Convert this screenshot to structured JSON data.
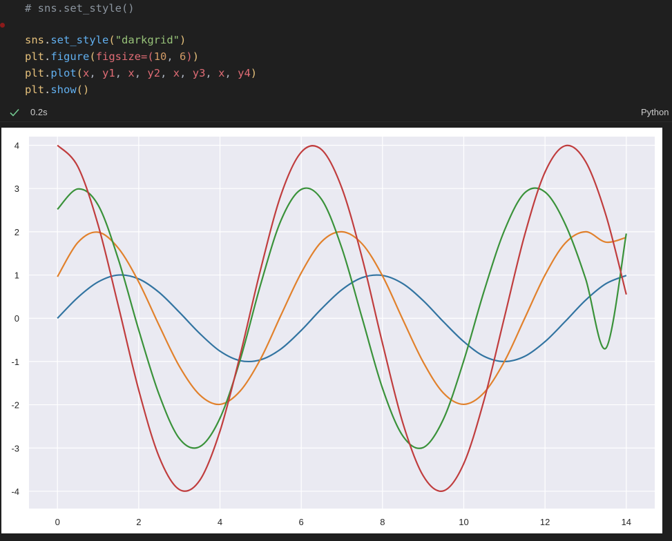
{
  "code": {
    "comment_line": "# sns.set_style()",
    "lines": [
      [
        {
          "t": "sns",
          "c": "var"
        },
        {
          "t": ".",
          "c": "dot"
        },
        {
          "t": "set_style",
          "c": "fn"
        },
        {
          "t": "(",
          "c": "paren"
        },
        {
          "t": "\"darkgrid\"",
          "c": "str"
        },
        {
          "t": ")",
          "c": "paren"
        }
      ],
      [
        {
          "t": "plt",
          "c": "var"
        },
        {
          "t": ".",
          "c": "dot"
        },
        {
          "t": "figure",
          "c": "fn"
        },
        {
          "t": "(",
          "c": "paren"
        },
        {
          "t": "figsize",
          "c": "kw"
        },
        {
          "t": "=",
          "c": "kw"
        },
        {
          "t": "(",
          "c": "kw"
        },
        {
          "t": "10",
          "c": "num"
        },
        {
          "t": ", ",
          "c": "punc"
        },
        {
          "t": "6",
          "c": "num"
        },
        {
          "t": ")",
          "c": "kw"
        },
        {
          "t": ")",
          "c": "paren"
        }
      ],
      [
        {
          "t": "plt",
          "c": "var"
        },
        {
          "t": ".",
          "c": "dot"
        },
        {
          "t": "plot",
          "c": "fn"
        },
        {
          "t": "(",
          "c": "paren"
        },
        {
          "t": "x",
          "c": "kw"
        },
        {
          "t": ", ",
          "c": "punc"
        },
        {
          "t": "y1",
          "c": "kw"
        },
        {
          "t": ", ",
          "c": "punc"
        },
        {
          "t": "x",
          "c": "kw"
        },
        {
          "t": ", ",
          "c": "punc"
        },
        {
          "t": "y2",
          "c": "kw"
        },
        {
          "t": ", ",
          "c": "punc"
        },
        {
          "t": "x",
          "c": "kw"
        },
        {
          "t": ", ",
          "c": "punc"
        },
        {
          "t": "y3",
          "c": "kw"
        },
        {
          "t": ", ",
          "c": "punc"
        },
        {
          "t": "x",
          "c": "kw"
        },
        {
          "t": ", ",
          "c": "punc"
        },
        {
          "t": "y4",
          "c": "kw"
        },
        {
          "t": ")",
          "c": "paren"
        }
      ],
      [
        {
          "t": "plt",
          "c": "var"
        },
        {
          "t": ".",
          "c": "dot"
        },
        {
          "t": "show",
          "c": "fn"
        },
        {
          "t": "()",
          "c": "paren"
        }
      ]
    ]
  },
  "status": {
    "exec_time": "0.2s",
    "kernel": "Python"
  },
  "colors": {
    "series": [
      "#3274a1",
      "#e1812c",
      "#3a923a",
      "#c03d3e"
    ],
    "plot_bg": "#eaeaf2",
    "grid": "#ffffff",
    "check": "#73c991"
  },
  "chart_data": {
    "type": "line",
    "style": "darkgrid",
    "xlim": [
      -0.7,
      14.7
    ],
    "ylim": [
      -4.4,
      4.2
    ],
    "xticks": [
      0,
      2,
      4,
      6,
      8,
      10,
      12,
      14
    ],
    "yticks": [
      4,
      3,
      2,
      1,
      0,
      -1,
      -2,
      -3,
      -4
    ],
    "grid": true,
    "series": [
      {
        "x": [
          0,
          0.5,
          1,
          1.5,
          2,
          2.5,
          3,
          3.5,
          4,
          4.5,
          5,
          5.5,
          6,
          6.5,
          7,
          7.5,
          8,
          8.5,
          9,
          9.5,
          10,
          10.5,
          11,
          11.5,
          12,
          12.5,
          13,
          13.5,
          14
        ],
        "y": [
          0,
          0.48,
          0.84,
          1.0,
          0.91,
          0.6,
          0.14,
          -0.35,
          -0.76,
          -0.98,
          -0.96,
          -0.71,
          -0.28,
          0.22,
          0.66,
          0.94,
          0.99,
          0.8,
          0.41,
          -0.08,
          -0.54,
          -0.88,
          -1.0,
          -0.88,
          -0.54,
          -0.07,
          0.42,
          0.8,
          0.99
        ]
      },
      {
        "x": [
          0,
          0.5,
          1,
          1.5,
          2,
          2.5,
          3,
          3.5,
          4,
          4.5,
          5,
          5.5,
          6,
          6.5,
          7,
          7.5,
          8,
          8.5,
          9,
          9.5,
          10,
          10.5,
          11,
          11.5,
          12,
          12.5,
          13,
          13.5,
          14
        ],
        "y": [
          0.96,
          1.75,
          1.99,
          1.62,
          0.84,
          -0.16,
          -1.11,
          -1.77,
          -1.99,
          -1.68,
          -0.94,
          0.07,
          1.05,
          1.77,
          2.0,
          1.72,
          0.98,
          -0.03,
          -1.01,
          -1.73,
          -1.99,
          -1.72,
          -1.0,
          0.0,
          1.0,
          1.74,
          2.0,
          1.76,
          1.87
        ]
      },
      {
        "x": [
          0,
          0.5,
          1,
          1.5,
          2,
          2.5,
          3,
          3.5,
          4,
          4.5,
          5,
          5.5,
          6,
          6.5,
          7,
          7.5,
          8,
          8.5,
          9,
          9.5,
          10,
          10.5,
          11,
          11.5,
          12,
          12.5,
          13,
          13.5,
          14
        ],
        "y": [
          2.52,
          2.99,
          2.62,
          1.36,
          -0.27,
          -1.76,
          -2.78,
          -2.97,
          -2.31,
          -0.95,
          0.78,
          2.26,
          2.98,
          2.75,
          1.62,
          0.0,
          -1.62,
          -2.72,
          -2.99,
          -2.33,
          -0.98,
          0.63,
          2.03,
          2.9,
          2.92,
          2.17,
          0.91,
          -0.69,
          1.96
        ]
      },
      {
        "x": [
          0,
          0.5,
          1,
          1.5,
          2,
          2.5,
          3,
          3.5,
          4,
          4.5,
          5,
          5.5,
          6,
          6.5,
          7,
          7.5,
          8,
          8.5,
          9,
          9.5,
          10,
          10.5,
          11,
          11.5,
          12,
          12.5,
          13,
          13.5,
          14
        ],
        "y": [
          4.0,
          3.51,
          2.16,
          0.28,
          -1.66,
          -3.2,
          -3.96,
          -3.75,
          -2.61,
          -0.84,
          1.13,
          2.85,
          3.84,
          3.9,
          3.01,
          1.39,
          -0.58,
          -2.42,
          -3.64,
          -3.99,
          -3.36,
          -1.89,
          0.02,
          1.93,
          3.38,
          3.99,
          3.62,
          2.38,
          0.55
        ]
      }
    ]
  }
}
